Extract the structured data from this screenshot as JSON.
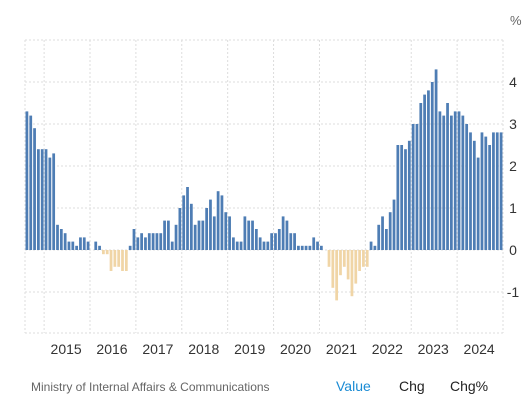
{
  "chart_data": {
    "type": "bar",
    "unit": "%",
    "x_start": "2014-08",
    "frequency": "monthly",
    "ylim": [
      -2,
      5
    ],
    "yticks": [
      "-1",
      "0",
      "1",
      "2",
      "3",
      "4"
    ],
    "xtick_labels": [
      "2015",
      "2016",
      "2017",
      "2018",
      "2019",
      "2020",
      "2021",
      "2022",
      "2023",
      "2024"
    ],
    "colors": {
      "positive": "#4e7db4",
      "negative": "#f0d5a6",
      "grid": "#dddddd"
    },
    "grid": true,
    "values": [
      3.3,
      3.2,
      2.9,
      2.4,
      2.4,
      2.4,
      2.2,
      2.3,
      0.6,
      0.5,
      0.4,
      0.2,
      0.2,
      0.1,
      0.3,
      0.3,
      0.2,
      0.0,
      0.2,
      0.1,
      -0.1,
      -0.1,
      -0.5,
      -0.4,
      -0.4,
      -0.5,
      -0.5,
      0.1,
      0.5,
      0.3,
      0.4,
      0.3,
      0.4,
      0.4,
      0.4,
      0.4,
      0.7,
      0.7,
      0.2,
      0.6,
      1.0,
      1.3,
      1.5,
      1.1,
      0.6,
      0.7,
      0.7,
      1.0,
      1.2,
      0.8,
      1.4,
      1.3,
      0.9,
      0.8,
      0.3,
      0.2,
      0.2,
      0.8,
      0.7,
      0.7,
      0.5,
      0.3,
      0.2,
      0.2,
      0.4,
      0.4,
      0.5,
      0.8,
      0.7,
      0.4,
      0.4,
      0.1,
      0.1,
      0.1,
      0.1,
      0.3,
      0.2,
      0.1,
      0.0,
      -0.4,
      -0.9,
      -1.2,
      -0.6,
      -0.4,
      -0.7,
      -1.1,
      -0.8,
      -0.5,
      -0.4,
      -0.4,
      0.2,
      0.1,
      0.6,
      0.8,
      0.5,
      0.9,
      1.2,
      2.5,
      2.5,
      2.4,
      2.6,
      3.0,
      3.0,
      3.5,
      3.7,
      3.8,
      4.0,
      4.3,
      3.3,
      3.2,
      3.5,
      3.2,
      3.3,
      3.3,
      3.2,
      3.0,
      2.8,
      2.6,
      2.2,
      2.8,
      2.7,
      2.5,
      2.8,
      2.8,
      2.8
    ]
  },
  "footer": {
    "source": "Ministry of Internal Affairs & Communications",
    "tabs": [
      "Value",
      "Chg",
      "Chg%"
    ],
    "active_tab": "Value"
  }
}
